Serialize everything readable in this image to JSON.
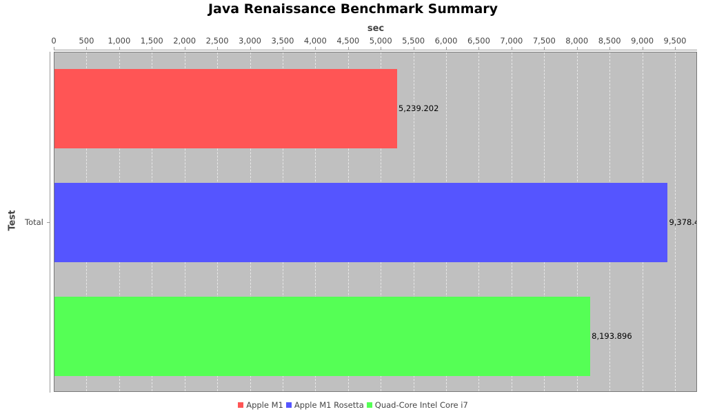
{
  "chart_data": {
    "type": "bar",
    "orientation": "horizontal",
    "title": "Java Renaissance Benchmark Summary",
    "xlabel": "sec",
    "ylabel": "Test",
    "categories": [
      "Total"
    ],
    "series": [
      {
        "name": "Apple M1",
        "values": [
          5239.202
        ],
        "color": "#ff5555",
        "label": "5,239.202"
      },
      {
        "name": "Apple M1 Rosetta",
        "values": [
          9378.4
        ],
        "color": "#5555ff",
        "label": "9,378.4"
      },
      {
        "name": "Quad-Core Intel Core i7",
        "values": [
          8193.896
        ],
        "color": "#55ff55",
        "label": "8,193.896"
      }
    ],
    "xlim": [
      0,
      9850
    ],
    "xticks": [
      "0",
      "500",
      "1,000",
      "1,500",
      "2,000",
      "2,500",
      "3,000",
      "3,500",
      "4,000",
      "4,500",
      "5,000",
      "5,500",
      "6,000",
      "6,500",
      "7,000",
      "7,500",
      "8,000",
      "8,500",
      "9,000",
      "9,500"
    ],
    "axis_position": "top",
    "grid": true,
    "legend_position": "bottom",
    "plot_background": "#c0c0c0"
  }
}
